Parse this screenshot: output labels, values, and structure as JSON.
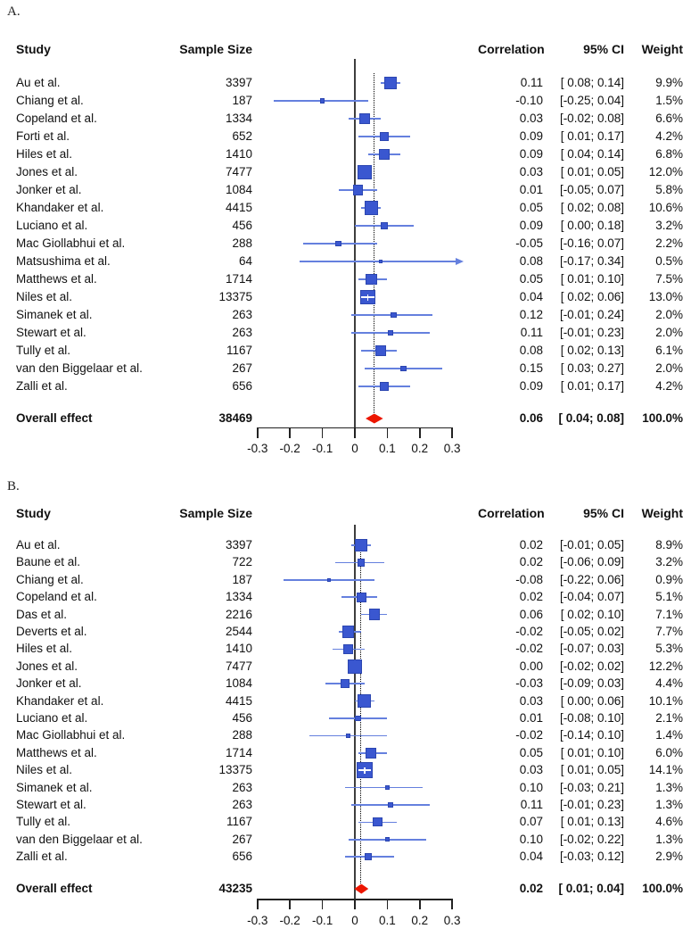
{
  "figure_title": "",
  "columns": {
    "study": "Study",
    "sample_size": "Sample Size",
    "correlation": "Correlation",
    "ci": "95% CI",
    "weight": "Weight"
  },
  "colors": {
    "square_fill": "#3a57d0",
    "square_border": "#2c46b0",
    "ci_line": "#6580de",
    "zero_line": "#3d3d3d",
    "dotted_line": "#000000",
    "diamond_red": "#ec1600",
    "axis": "#222222"
  },
  "chart_data": [
    {
      "type": "forest",
      "panel": "A.",
      "tick_labels": [
        "-0.3",
        "-0.2",
        "-0.1",
        "0",
        "0.1",
        "0.2",
        "0.3"
      ],
      "xlim": [
        -0.3,
        0.32
      ],
      "zero_line_at": 0,
      "dotted_line_at": 0.06,
      "studies": [
        {
          "study": "Au et al.",
          "n": "3397",
          "corr": "0.11",
          "corr_v": 0.11,
          "lo": 0.08,
          "hi": 0.14,
          "ci": "[ 0.08; 0.14]",
          "weight": "9.9%",
          "w": 9.9
        },
        {
          "study": "Chiang et al.",
          "n": "187",
          "corr": "-0.10",
          "corr_v": -0.1,
          "lo": -0.25,
          "hi": 0.04,
          "ci": "[-0.25; 0.04]",
          "weight": "1.5%",
          "w": 1.5
        },
        {
          "study": "Copeland et al.",
          "n": "1334",
          "corr": "0.03",
          "corr_v": 0.03,
          "lo": -0.02,
          "hi": 0.08,
          "ci": "[-0.02; 0.08]",
          "weight": "6.6%",
          "w": 6.6
        },
        {
          "study": "Forti et al.",
          "n": "652",
          "corr": "0.09",
          "corr_v": 0.09,
          "lo": 0.01,
          "hi": 0.17,
          "ci": "[ 0.01; 0.17]",
          "weight": "4.2%",
          "w": 4.2
        },
        {
          "study": "Hiles et al.",
          "n": "1410",
          "corr": "0.09",
          "corr_v": 0.09,
          "lo": 0.04,
          "hi": 0.14,
          "ci": "[ 0.04; 0.14]",
          "weight": "6.8%",
          "w": 6.8
        },
        {
          "study": "Jones et al.",
          "n": "7477",
          "corr": "0.03",
          "corr_v": 0.03,
          "lo": 0.01,
          "hi": 0.05,
          "ci": "[ 0.01; 0.05]",
          "weight": "12.0%",
          "w": 12.0
        },
        {
          "study": "Jonker et al.",
          "n": "1084",
          "corr": "0.01",
          "corr_v": 0.01,
          "lo": -0.05,
          "hi": 0.07,
          "ci": "[-0.05; 0.07]",
          "weight": "5.8%",
          "w": 5.8
        },
        {
          "study": "Khandaker et al.",
          "n": "4415",
          "corr": "0.05",
          "corr_v": 0.05,
          "lo": 0.02,
          "hi": 0.08,
          "ci": "[ 0.02; 0.08]",
          "weight": "10.6%",
          "w": 10.6
        },
        {
          "study": "Luciano et al.",
          "n": "456",
          "corr": "0.09",
          "corr_v": 0.09,
          "lo": 0.0,
          "hi": 0.18,
          "ci": "[ 0.00; 0.18]",
          "weight": "3.2%",
          "w": 3.2
        },
        {
          "study": "Mac Giollabhui et al.",
          "n": "288",
          "corr": "-0.05",
          "corr_v": -0.05,
          "lo": -0.16,
          "hi": 0.07,
          "ci": "[-0.16; 0.07]",
          "weight": "2.2%",
          "w": 2.2
        },
        {
          "study": "Matsushima et al.",
          "n": "64",
          "corr": "0.08",
          "corr_v": 0.08,
          "lo": -0.17,
          "hi": 0.34,
          "ci": "[-0.17; 0.34]",
          "weight": "0.5%",
          "w": 0.5
        },
        {
          "study": "Matthews et al.",
          "n": "1714",
          "corr": "0.05",
          "corr_v": 0.05,
          "lo": 0.01,
          "hi": 0.1,
          "ci": "[ 0.01; 0.10]",
          "weight": "7.5%",
          "w": 7.5
        },
        {
          "study": "Niles et al.",
          "n": "13375",
          "corr": "0.04",
          "corr_v": 0.04,
          "lo": 0.02,
          "hi": 0.06,
          "ci": "[ 0.02; 0.06]",
          "weight": "13.0%",
          "w": 13.0
        },
        {
          "study": "Simanek et al.",
          "n": "263",
          "corr": "0.12",
          "corr_v": 0.12,
          "lo": -0.01,
          "hi": 0.24,
          "ci": "[-0.01; 0.24]",
          "weight": "2.0%",
          "w": 2.0
        },
        {
          "study": "Stewart et al.",
          "n": "263",
          "corr": "0.11",
          "corr_v": 0.11,
          "lo": -0.01,
          "hi": 0.23,
          "ci": "[-0.01; 0.23]",
          "weight": "2.0%",
          "w": 2.0
        },
        {
          "study": "Tully et al.",
          "n": "1167",
          "corr": "0.08",
          "corr_v": 0.08,
          "lo": 0.02,
          "hi": 0.13,
          "ci": "[ 0.02; 0.13]",
          "weight": "6.1%",
          "w": 6.1
        },
        {
          "study": "van den Biggelaar et al.",
          "n": "267",
          "corr": "0.15",
          "corr_v": 0.15,
          "lo": 0.03,
          "hi": 0.27,
          "ci": "[ 0.03; 0.27]",
          "weight": "2.0%",
          "w": 2.0
        },
        {
          "study": "Zalli et al.",
          "n": "656",
          "corr": "0.09",
          "corr_v": 0.09,
          "lo": 0.01,
          "hi": 0.17,
          "ci": "[ 0.01; 0.17]",
          "weight": "4.2%",
          "w": 4.2
        }
      ],
      "overall": {
        "label": "Overall effect",
        "n": "38469",
        "corr": "0.06",
        "corr_v": 0.06,
        "lo": 0.04,
        "hi": 0.08,
        "ci": "[ 0.04; 0.08]",
        "weight": "100.0%"
      }
    },
    {
      "type": "forest",
      "panel": "B.",
      "tick_labels": [
        "-0.3",
        "-0.2",
        "-0.1",
        "0",
        "0.1",
        "0.2",
        "0.3"
      ],
      "xlim": [
        -0.3,
        0.32
      ],
      "zero_line_at": 0,
      "dotted_line_at": 0.02,
      "studies": [
        {
          "study": "Au et al.",
          "n": "3397",
          "corr": "0.02",
          "corr_v": 0.02,
          "lo": -0.01,
          "hi": 0.05,
          "ci": "[-0.01; 0.05]",
          "weight": "8.9%",
          "w": 8.9
        },
        {
          "study": "Baune et al.",
          "n": "722",
          "corr": "0.02",
          "corr_v": 0.02,
          "lo": -0.06,
          "hi": 0.09,
          "ci": "[-0.06; 0.09]",
          "weight": "3.2%",
          "w": 3.2
        },
        {
          "study": "Chiang et al.",
          "n": "187",
          "corr": "-0.08",
          "corr_v": -0.08,
          "lo": -0.22,
          "hi": 0.06,
          "ci": "[-0.22; 0.06]",
          "weight": "0.9%",
          "w": 0.9
        },
        {
          "study": "Copeland et al.",
          "n": "1334",
          "corr": "0.02",
          "corr_v": 0.02,
          "lo": -0.04,
          "hi": 0.07,
          "ci": "[-0.04; 0.07]",
          "weight": "5.1%",
          "w": 5.1
        },
        {
          "study": "Das et al.",
          "n": "2216",
          "corr": "0.06",
          "corr_v": 0.06,
          "lo": 0.02,
          "hi": 0.1,
          "ci": "[ 0.02; 0.10]",
          "weight": "7.1%",
          "w": 7.1
        },
        {
          "study": "Deverts et al.",
          "n": "2544",
          "corr": "-0.02",
          "corr_v": -0.02,
          "lo": -0.05,
          "hi": 0.02,
          "ci": "[-0.05; 0.02]",
          "weight": "7.7%",
          "w": 7.7
        },
        {
          "study": "Hiles et al.",
          "n": "1410",
          "corr": "-0.02",
          "corr_v": -0.02,
          "lo": -0.07,
          "hi": 0.03,
          "ci": "[-0.07; 0.03]",
          "weight": "5.3%",
          "w": 5.3
        },
        {
          "study": "Jones et al.",
          "n": "7477",
          "corr": "0.00",
          "corr_v": 0.0,
          "lo": -0.02,
          "hi": 0.02,
          "ci": "[-0.02; 0.02]",
          "weight": "12.2%",
          "w": 12.2
        },
        {
          "study": "Jonker et al.",
          "n": "1084",
          "corr": "-0.03",
          "corr_v": -0.03,
          "lo": -0.09,
          "hi": 0.03,
          "ci": "[-0.09; 0.03]",
          "weight": "4.4%",
          "w": 4.4
        },
        {
          "study": "Khandaker et al.",
          "n": "4415",
          "corr": "0.03",
          "corr_v": 0.03,
          "lo": 0.0,
          "hi": 0.06,
          "ci": "[ 0.00; 0.06]",
          "weight": "10.1%",
          "w": 10.1
        },
        {
          "study": "Luciano et al.",
          "n": "456",
          "corr": "0.01",
          "corr_v": 0.01,
          "lo": -0.08,
          "hi": 0.1,
          "ci": "[-0.08; 0.10]",
          "weight": "2.1%",
          "w": 2.1
        },
        {
          "study": "Mac Giollabhui et al.",
          "n": "288",
          "corr": "-0.02",
          "corr_v": -0.02,
          "lo": -0.14,
          "hi": 0.1,
          "ci": "[-0.14; 0.10]",
          "weight": "1.4%",
          "w": 1.4
        },
        {
          "study": "Matthews et al.",
          "n": "1714",
          "corr": "0.05",
          "corr_v": 0.05,
          "lo": 0.01,
          "hi": 0.1,
          "ci": "[ 0.01; 0.10]",
          "weight": "6.0%",
          "w": 6.0
        },
        {
          "study": "Niles et al.",
          "n": "13375",
          "corr": "0.03",
          "corr_v": 0.03,
          "lo": 0.01,
          "hi": 0.05,
          "ci": "[ 0.01; 0.05]",
          "weight": "14.1%",
          "w": 14.1
        },
        {
          "study": "Simanek et al.",
          "n": "263",
          "corr": "0.10",
          "corr_v": 0.1,
          "lo": -0.03,
          "hi": 0.21,
          "ci": "[-0.03; 0.21]",
          "weight": "1.3%",
          "w": 1.3
        },
        {
          "study": "Stewart et al.",
          "n": "263",
          "corr": "0.11",
          "corr_v": 0.11,
          "lo": -0.01,
          "hi": 0.23,
          "ci": "[-0.01; 0.23]",
          "weight": "1.3%",
          "w": 1.3
        },
        {
          "study": "Tully et al.",
          "n": "1167",
          "corr": "0.07",
          "corr_v": 0.07,
          "lo": 0.01,
          "hi": 0.13,
          "ci": "[ 0.01; 0.13]",
          "weight": "4.6%",
          "w": 4.6
        },
        {
          "study": "van den Biggelaar et al.",
          "n": "267",
          "corr": "0.10",
          "corr_v": 0.1,
          "lo": -0.02,
          "hi": 0.22,
          "ci": "[-0.02; 0.22]",
          "weight": "1.3%",
          "w": 1.3
        },
        {
          "study": "Zalli et al.",
          "n": "656",
          "corr": "0.04",
          "corr_v": 0.04,
          "lo": -0.03,
          "hi": 0.12,
          "ci": "[-0.03; 0.12]",
          "weight": "2.9%",
          "w": 2.9
        }
      ],
      "overall": {
        "label": "Overall effect",
        "n": "43235",
        "corr": "0.02",
        "corr_v": 0.02,
        "lo": 0.01,
        "hi": 0.04,
        "ci": "[ 0.01; 0.04]",
        "weight": "100.0%"
      }
    }
  ]
}
